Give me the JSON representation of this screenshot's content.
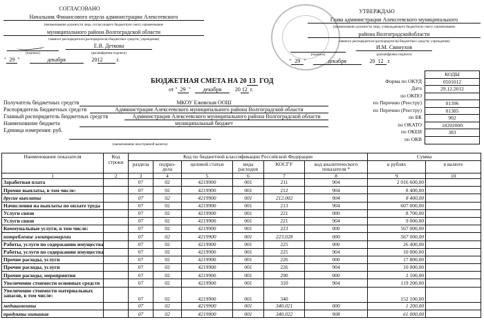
{
  "approved_left": {
    "heading": "СОГЛАСОВАНО",
    "position_line1": "Начальник Финансового отдела администрации Алексеевского",
    "caption1": "(наименование должности лица, согласующего бюджетную смету, наименование",
    "position_line2": "муниципального района Волгоградской области",
    "caption2": "главного распорядителя (распорядителя) бюджетных средств; учреждения)",
    "signer": "Е.В. Деткова",
    "sig_caption": "(подпись)",
    "name_caption": "(расшифровка подписи)",
    "day": "29",
    "month": "декабря",
    "year_prefix": "20",
    "year": "12",
    "year_suffix": "г."
  },
  "approved_right": {
    "heading": "УТВЕРЖДАЮ",
    "position_line1": "Глава администрации Алексеевского муниципального",
    "caption1": "(наименование должности лица, утверждающего бюджетную смету, наименование",
    "position_line2": "района Волгоградскойобласти",
    "caption2": "главного распорядителя (распорядителя) бюджетных средств; учреждения)",
    "signer": "И.М.  Свинухов",
    "sig_caption": "(подпись)",
    "name_caption": "(расшифровка подписи)",
    "day": "29",
    "month": "декабря",
    "year_prefix": "20",
    "year": "12",
    "year_suffix": "г."
  },
  "title": {
    "text": "БЮДЖЕТНАЯ СМЕТА НА 20",
    "year": "13",
    "suffix": "ГОД",
    "from": "от",
    "day": "29",
    "month": "декабря",
    "year_prefix": "20",
    "year2": "12",
    "year_suffix": "г."
  },
  "info": [
    {
      "label": "Получатель бюджетных средств",
      "value": "МКОУ Ежовская ООШ"
    },
    {
      "label": "Распорядитель бюджетных средств",
      "value": "Администрация Алексеевского муниципального района Волгоградской области"
    },
    {
      "label": "Главный распорядитель бюджетных средств",
      "value": "Администрация Алексеевского муниципального района Волгоградской области"
    },
    {
      "label": "Наименование бюджета",
      "value": "муниципальный бюджет"
    },
    {
      "label": "Единица измерения: руб.",
      "value": ""
    }
  ],
  "currency_caption": "(наименование иностранной валюты)",
  "codes": {
    "header": "КОДЫ",
    "rows": [
      {
        "label": "Форма по ОКУД",
        "value": "0501012"
      },
      {
        "label": "Дата",
        "value": "29.12.2012"
      },
      {
        "label": "по ОКПО",
        "value": ""
      },
      {
        "label": "по Перечню (Реестру)",
        "value": "01396"
      },
      {
        "label": "по Перечню (Реестру)",
        "value": "01385"
      },
      {
        "label": "по БК",
        "value": "902"
      },
      {
        "label": "по ОКАТО",
        "value": "18202000"
      },
      {
        "label": "по ОКЕИ",
        "value": "383"
      },
      {
        "label": "по ОКВ",
        "value": ""
      }
    ]
  },
  "table": {
    "h_name": "Наименование показателя",
    "h_code": "Код строки",
    "h_class": "Код по бюджетной классификации Российской Федерации",
    "h_sum": "Сумма",
    "h_sub": [
      "раздела",
      "подраз-дела",
      "целевой статьи",
      "вида расходов",
      "КОСГУ",
      "код аналитического показателя *",
      "в рублях",
      "в валюте"
    ],
    "nums": [
      "1",
      "2",
      "3",
      "4",
      "5",
      "6",
      "7",
      "8",
      "9",
      "10"
    ],
    "rows": [
      {
        "name": "Заработная плата",
        "r": "07",
        "p": "02",
        "c": "4219900",
        "v": "001",
        "k": "211",
        "a": "904",
        "sum": "2 016 600,00",
        "i": false
      },
      {
        "name": "Прочие выплаты, в том числе:",
        "r": "07",
        "p": "02",
        "c": "4219900",
        "v": "001",
        "k": "212",
        "a": "904",
        "sum": "8 400,00",
        "i": false
      },
      {
        "name": "другие выплаты",
        "r": "07",
        "p": "02",
        "c": "4219900",
        "v": "001",
        "k": "212.002",
        "a": "904",
        "sum": "8 400,00",
        "i": true
      },
      {
        "name": "Начисления на выплаты по оплате труда",
        "r": "07",
        "p": "02",
        "c": "4219900",
        "v": "001",
        "k": "213",
        "a": "904",
        "sum": "607 000,00",
        "i": false
      },
      {
        "name": "Услуги связи",
        "r": "07",
        "p": "02",
        "c": "4219900",
        "v": "001",
        "k": "221",
        "a": "000",
        "sum": "8 700,00",
        "i": false
      },
      {
        "name": "Услуги связи",
        "r": "07",
        "p": "02",
        "c": "4219900",
        "v": "001",
        "k": "221",
        "a": "904",
        "sum": "9 000,00",
        "i": false
      },
      {
        "name": "Коммунальные услуги, в том числе:",
        "r": "07",
        "p": "02",
        "c": "4219900",
        "v": "001",
        "k": "223",
        "a": "000",
        "sum": "567 000,00",
        "i": false
      },
      {
        "name": "потребление электроэнергии",
        "r": "07",
        "p": "02",
        "c": "4219900",
        "v": "001",
        "k": "223.028",
        "a": "000",
        "sum": "567 000,00",
        "i": true
      },
      {
        "name": "Работы, услуги по содержанию имущества",
        "r": "07",
        "p": "02",
        "c": "4219900",
        "v": "001",
        "k": "225",
        "a": "000",
        "sum": "26 400,00",
        "i": false
      },
      {
        "name": "Работы, услуги по содержанию имущества",
        "r": "07",
        "p": "02",
        "c": "4219900",
        "v": "001",
        "k": "225",
        "a": "904",
        "sum": "10 000,00",
        "i": false
      },
      {
        "name": "Прочие расходы, услуги",
        "r": "07",
        "p": "02",
        "c": "4219900",
        "v": "001",
        "k": "226",
        "a": "000",
        "sum": "17 800,00",
        "i": false
      },
      {
        "name": "Прочие расходы, услуги",
        "r": "07",
        "p": "02",
        "c": "4219900",
        "v": "001",
        "k": "226",
        "a": "904",
        "sum": "10 000,00",
        "i": false
      },
      {
        "name": "Прочие расходы, мероприятия",
        "r": "07",
        "p": "02",
        "c": "4219900",
        "v": "001",
        "k": "290",
        "a": "000",
        "sum": "2 100,00",
        "i": false
      },
      {
        "name": "Увеличение стоимости основных средств",
        "r": "07",
        "p": "02",
        "c": "4219900",
        "v": "001",
        "k": "310",
        "a": "904",
        "sum": "119 200,00",
        "i": false
      },
      {
        "name": "Увеличение стоимости материальных запасов, в том числе:",
        "r": "07",
        "p": "02",
        "c": "4219900",
        "v": "001",
        "k": "340",
        "a": "",
        "sum": "152 100,00",
        "i": false,
        "double": true
      },
      {
        "name": "медикаменты",
        "r": "07",
        "p": "02",
        "c": "4219900",
        "v": "001",
        "k": "340.021",
        "a": "000",
        "sum": "1 200,00",
        "i": true
      },
      {
        "name": "продукты питания",
        "r": "07",
        "p": "02",
        "c": "4219900",
        "v": "001",
        "k": "340.022",
        "a": "908",
        "sum": "61 000,00",
        "i": true
      }
    ]
  }
}
